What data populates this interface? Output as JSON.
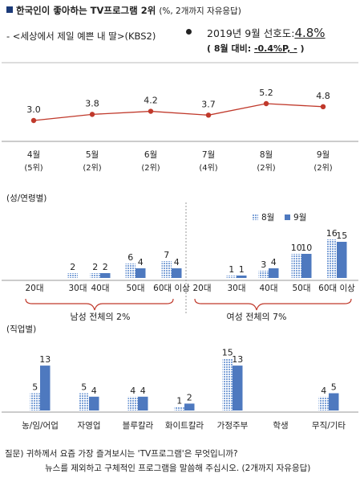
{
  "header": {
    "title": "한국인이 좋아하는 TV프로그램 2위",
    "title_note": "(%, 2개까지 자유응답)",
    "subtitle": "- <세상에서 제일 예쁜 내 딸>(KBS2)",
    "pref_label": "2019년 9월 선호도:",
    "pref_value": "4.8%",
    "pref_change_prefix": "( 8월 대비:",
    "pref_change_value": "-0.4%P, -",
    "pref_change_suffix": ")"
  },
  "colors": {
    "line": "#c0392b",
    "aug": "#7fa3d8",
    "sep": "#4e79bf",
    "title_square": "#1b3a78"
  },
  "chart_data": [
    {
      "type": "line",
      "categories": [
        "4월\n(5위)",
        "5월\n(2위)",
        "6월\n(2위)",
        "7월\n(4위)",
        "8월\n(2위)",
        "9월\n(2위)"
      ],
      "values": [
        3.0,
        3.8,
        4.2,
        3.7,
        5.2,
        4.8
      ],
      "value_labels": [
        "3.0",
        "3.8",
        "4.2",
        "3.7",
        "5.2",
        "4.8"
      ]
    },
    {
      "type": "bar",
      "section_label": "(성/연령별)",
      "categories": [
        "20대",
        "30대",
        "40대",
        "50대",
        "60대 이상",
        "20대",
        "30대",
        "40대",
        "50대",
        "60대 이상"
      ],
      "series": [
        {
          "name": "8월",
          "values": [
            0,
            2,
            2,
            6,
            7,
            0,
            1,
            3,
            10,
            16
          ],
          "labels": [
            "",
            "2",
            "2",
            "6",
            "7",
            "",
            "1",
            "3",
            "10",
            "16"
          ]
        },
        {
          "name": "9월",
          "values": [
            0,
            0,
            2,
            4,
            4,
            0,
            1,
            4,
            10,
            15
          ],
          "labels": [
            "",
            "",
            "2",
            "4",
            "4",
            "",
            "1",
            "4",
            "10",
            "15"
          ]
        }
      ],
      "group_labels": [
        "남성 전체의 2%",
        "여성 전체의 7%"
      ]
    },
    {
      "type": "bar",
      "section_label": "(직업별)",
      "categories": [
        "농/임/어업",
        "자영업",
        "블루칼라",
        "화이트칼라",
        "가정주부",
        "학생",
        "무직/기타"
      ],
      "series": [
        {
          "name": "8월",
          "values": [
            5,
            5,
            4,
            1,
            15,
            0,
            4
          ],
          "labels": [
            "5",
            "5",
            "4",
            "1",
            "15",
            "",
            "4"
          ]
        },
        {
          "name": "9월",
          "values": [
            13,
            4,
            4,
            2,
            13,
            0,
            5
          ],
          "labels": [
            "13",
            "4",
            "4",
            "2",
            "13",
            "",
            "5"
          ]
        }
      ]
    }
  ],
  "footer": {
    "line1": "질문) 귀하께서 요즘 가장 즐겨보시는 'TV프로그램'은 무엇입니까?",
    "line2": "뉴스를 제외하고 구체적인 프로그램을 말씀해 주십시오. (2개까지 자유응답)"
  }
}
